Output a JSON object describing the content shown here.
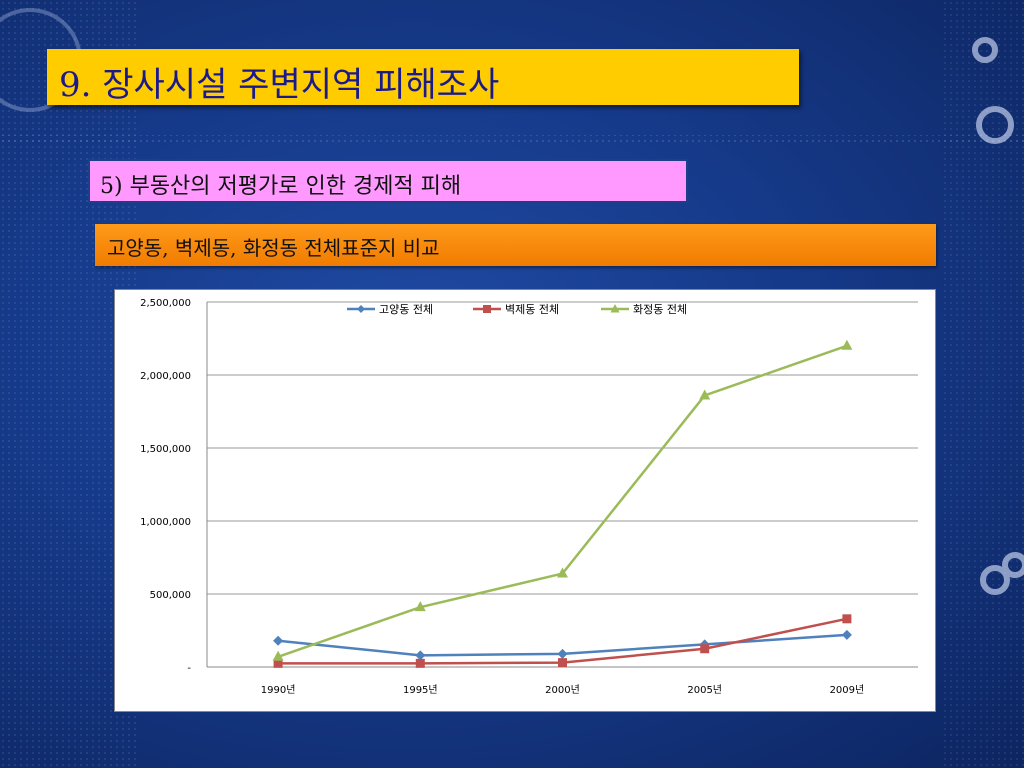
{
  "slide": {
    "title": "9. 장사시설 주변지역 피해조사",
    "subtitle": "5) 부동산의 저평가로 인한 경제적 피해",
    "section_label": "고양동, 벽제동, 화정동 전체표준지 비교"
  },
  "colors": {
    "background": "#163a8a",
    "title_box": "#ffcc00",
    "subtitle_box": "#ff99ff",
    "section_box": "#f58a0a",
    "series": [
      "#4f81bd",
      "#c0504d",
      "#9bbb59"
    ]
  },
  "chart_data": {
    "type": "line",
    "title": "",
    "xlabel": "",
    "ylabel": "",
    "categories": [
      "1990년",
      "1995년",
      "2000년",
      "2005년",
      "2009년"
    ],
    "ylim": [
      0,
      2500000
    ],
    "yticks": [
      0,
      500000,
      1000000,
      1500000,
      2000000,
      2500000
    ],
    "ytick_labels": [
      "-",
      "500,000",
      "1,000,000",
      "1,500,000",
      "2,000,000",
      "2,500,000"
    ],
    "grid": true,
    "legend": "top",
    "series": [
      {
        "name": "고양동 전체",
        "marker": "diamond",
        "values": [
          180000,
          80000,
          90000,
          155000,
          220000
        ]
      },
      {
        "name": "벽제동 전체",
        "marker": "square",
        "values": [
          25000,
          25000,
          30000,
          125000,
          330000
        ]
      },
      {
        "name": "화정동 전체",
        "marker": "triangle",
        "values": [
          70000,
          410000,
          640000,
          1860000,
          2200000
        ]
      }
    ]
  }
}
